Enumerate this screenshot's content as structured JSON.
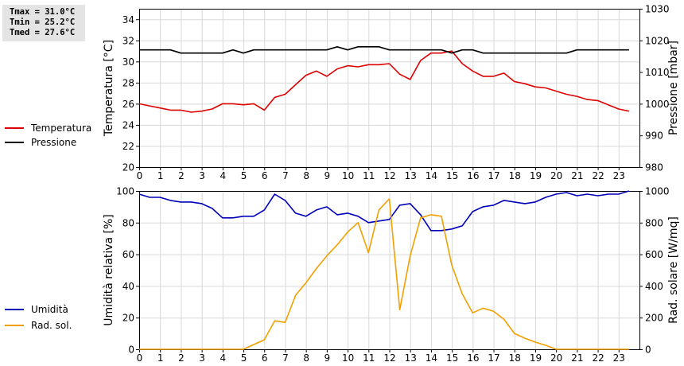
{
  "stats": {
    "tmax": "Tmax = 31.0°C",
    "tmin": "Tmin = 25.2°C",
    "tmed": "Tmed = 27.6°C"
  },
  "chart_data": [
    {
      "type": "line",
      "xlim": [
        0,
        24
      ],
      "x_ticks": [
        0,
        1,
        2,
        3,
        4,
        5,
        6,
        7,
        8,
        9,
        10,
        11,
        12,
        13,
        14,
        15,
        16,
        17,
        18,
        19,
        20,
        21,
        22,
        23
      ],
      "ylabel": "Temperatura [°C]",
      "ylim": [
        20,
        35
      ],
      "y_ticks": [
        20,
        22,
        24,
        26,
        28,
        30,
        32,
        34
      ],
      "y2label": "Pressione [mbar]",
      "y2lim": [
        980,
        1030
      ],
      "y2_ticks": [
        980,
        990,
        1000,
        1010,
        1020,
        1030
      ],
      "grid": true,
      "legend_position": "left",
      "series": [
        {
          "name": "Temperatura",
          "axis": "left",
          "color": "#dd0000",
          "x": [
            0,
            0.5,
            1,
            1.5,
            2,
            2.5,
            3,
            3.5,
            4,
            4.5,
            5,
            5.5,
            6,
            6.5,
            7,
            7.5,
            8,
            8.5,
            9,
            9.5,
            10,
            10.5,
            11,
            11.5,
            12,
            12.5,
            13,
            13.5,
            14,
            14.5,
            15,
            15.5,
            16,
            16.5,
            17,
            17.5,
            18,
            18.5,
            19,
            19.5,
            20,
            20.5,
            21,
            21.5,
            22,
            22.5,
            23,
            23.5
          ],
          "values": [
            26.0,
            25.8,
            25.6,
            25.4,
            25.4,
            25.2,
            25.3,
            25.5,
            26.0,
            26.0,
            25.9,
            26.0,
            25.4,
            26.6,
            26.9,
            27.8,
            28.7,
            29.1,
            28.6,
            29.3,
            29.6,
            29.5,
            29.7,
            29.7,
            29.8,
            28.8,
            28.3,
            30.1,
            30.8,
            30.8,
            31.0,
            29.8,
            29.1,
            28.6,
            28.6,
            28.9,
            28.1,
            27.9,
            27.6,
            27.5,
            27.2,
            26.9,
            26.7,
            26.4,
            26.3,
            25.9,
            25.5,
            25.3
          ]
        },
        {
          "name": "Pressione",
          "axis": "right",
          "color": "#000000",
          "x": [
            0,
            0.5,
            1,
            1.5,
            2,
            2.5,
            3,
            3.5,
            4,
            4.5,
            5,
            5.5,
            6,
            6.5,
            7,
            7.5,
            8,
            8.5,
            9,
            9.5,
            10,
            10.5,
            11,
            11.5,
            12,
            12.5,
            13,
            13.5,
            14,
            14.5,
            15,
            15.5,
            16,
            16.5,
            17,
            17.5,
            18,
            18.5,
            19,
            19.5,
            20,
            20.5,
            21,
            21.5,
            22,
            22.5,
            23,
            23.5
          ],
          "values": [
            1017,
            1017,
            1017,
            1017,
            1016,
            1016,
            1016,
            1016,
            1016,
            1017,
            1016,
            1017,
            1017,
            1017,
            1017,
            1017,
            1017,
            1017,
            1017,
            1018,
            1017,
            1018,
            1018,
            1018,
            1017,
            1017,
            1017,
            1017,
            1017,
            1017,
            1016,
            1017,
            1017,
            1016,
            1016,
            1016,
            1016,
            1016,
            1016,
            1016,
            1016,
            1016,
            1017,
            1017,
            1017,
            1017,
            1017,
            1017
          ]
        }
      ]
    },
    {
      "type": "line",
      "xlim": [
        0,
        24
      ],
      "x_ticks": [
        0,
        1,
        2,
        3,
        4,
        5,
        6,
        7,
        8,
        9,
        10,
        11,
        12,
        13,
        14,
        15,
        16,
        17,
        18,
        19,
        20,
        21,
        22,
        23
      ],
      "ylabel": "Umidità relativa [%]",
      "ylim": [
        0,
        100
      ],
      "y_ticks": [
        0,
        20,
        40,
        60,
        80,
        100
      ],
      "y2label": "Rad. solare [W/mq]",
      "y2lim": [
        0,
        1000
      ],
      "y2_ticks": [
        0,
        200,
        400,
        600,
        800,
        1000
      ],
      "grid": true,
      "legend_position": "left",
      "series": [
        {
          "name": "Umidità",
          "axis": "left",
          "color": "#0000bb",
          "x": [
            0,
            0.5,
            1,
            1.5,
            2,
            2.5,
            3,
            3.5,
            4,
            4.5,
            5,
            5.5,
            6,
            6.5,
            7,
            7.5,
            8,
            8.5,
            9,
            9.5,
            10,
            10.5,
            11,
            11.5,
            12,
            12.5,
            13,
            13.5,
            14,
            14.5,
            15,
            15.5,
            16,
            16.5,
            17,
            17.5,
            18,
            18.5,
            19,
            19.5,
            20,
            20.5,
            21,
            21.5,
            22,
            22.5,
            23,
            23.5
          ],
          "values": [
            98,
            96,
            96,
            94,
            93,
            93,
            92,
            89,
            83,
            83,
            84,
            84,
            88,
            98,
            94,
            86,
            84,
            88,
            90,
            85,
            86,
            84,
            80,
            81,
            82,
            91,
            92,
            85,
            75,
            75,
            76,
            78,
            87,
            90,
            91,
            94,
            93,
            92,
            93,
            96,
            98,
            99,
            97,
            98,
            97,
            98,
            98,
            100
          ]
        },
        {
          "name": "Rad. sol.",
          "axis": "right",
          "color": "#f0a000",
          "x": [
            0,
            0.5,
            1,
            1.5,
            2,
            2.5,
            3,
            3.5,
            4,
            4.5,
            5,
            5.5,
            6,
            6.5,
            7,
            7.5,
            8,
            8.5,
            9,
            9.5,
            10,
            10.5,
            11,
            11.5,
            12,
            12.5,
            13,
            13.5,
            14,
            14.5,
            15,
            15.5,
            16,
            16.5,
            17,
            17.5,
            18,
            18.5,
            19,
            19.5,
            20,
            20.5,
            21,
            21.5,
            22,
            22.5,
            23,
            23.5
          ],
          "values": [
            0,
            0,
            0,
            0,
            0,
            0,
            0,
            0,
            0,
            0,
            0,
            30,
            60,
            180,
            170,
            340,
            420,
            510,
            590,
            660,
            740,
            800,
            610,
            880,
            950,
            250,
            590,
            830,
            850,
            840,
            530,
            350,
            230,
            260,
            240,
            190,
            100,
            70,
            45,
            25,
            0,
            0,
            0,
            0,
            0,
            0,
            0,
            0
          ]
        }
      ]
    }
  ]
}
